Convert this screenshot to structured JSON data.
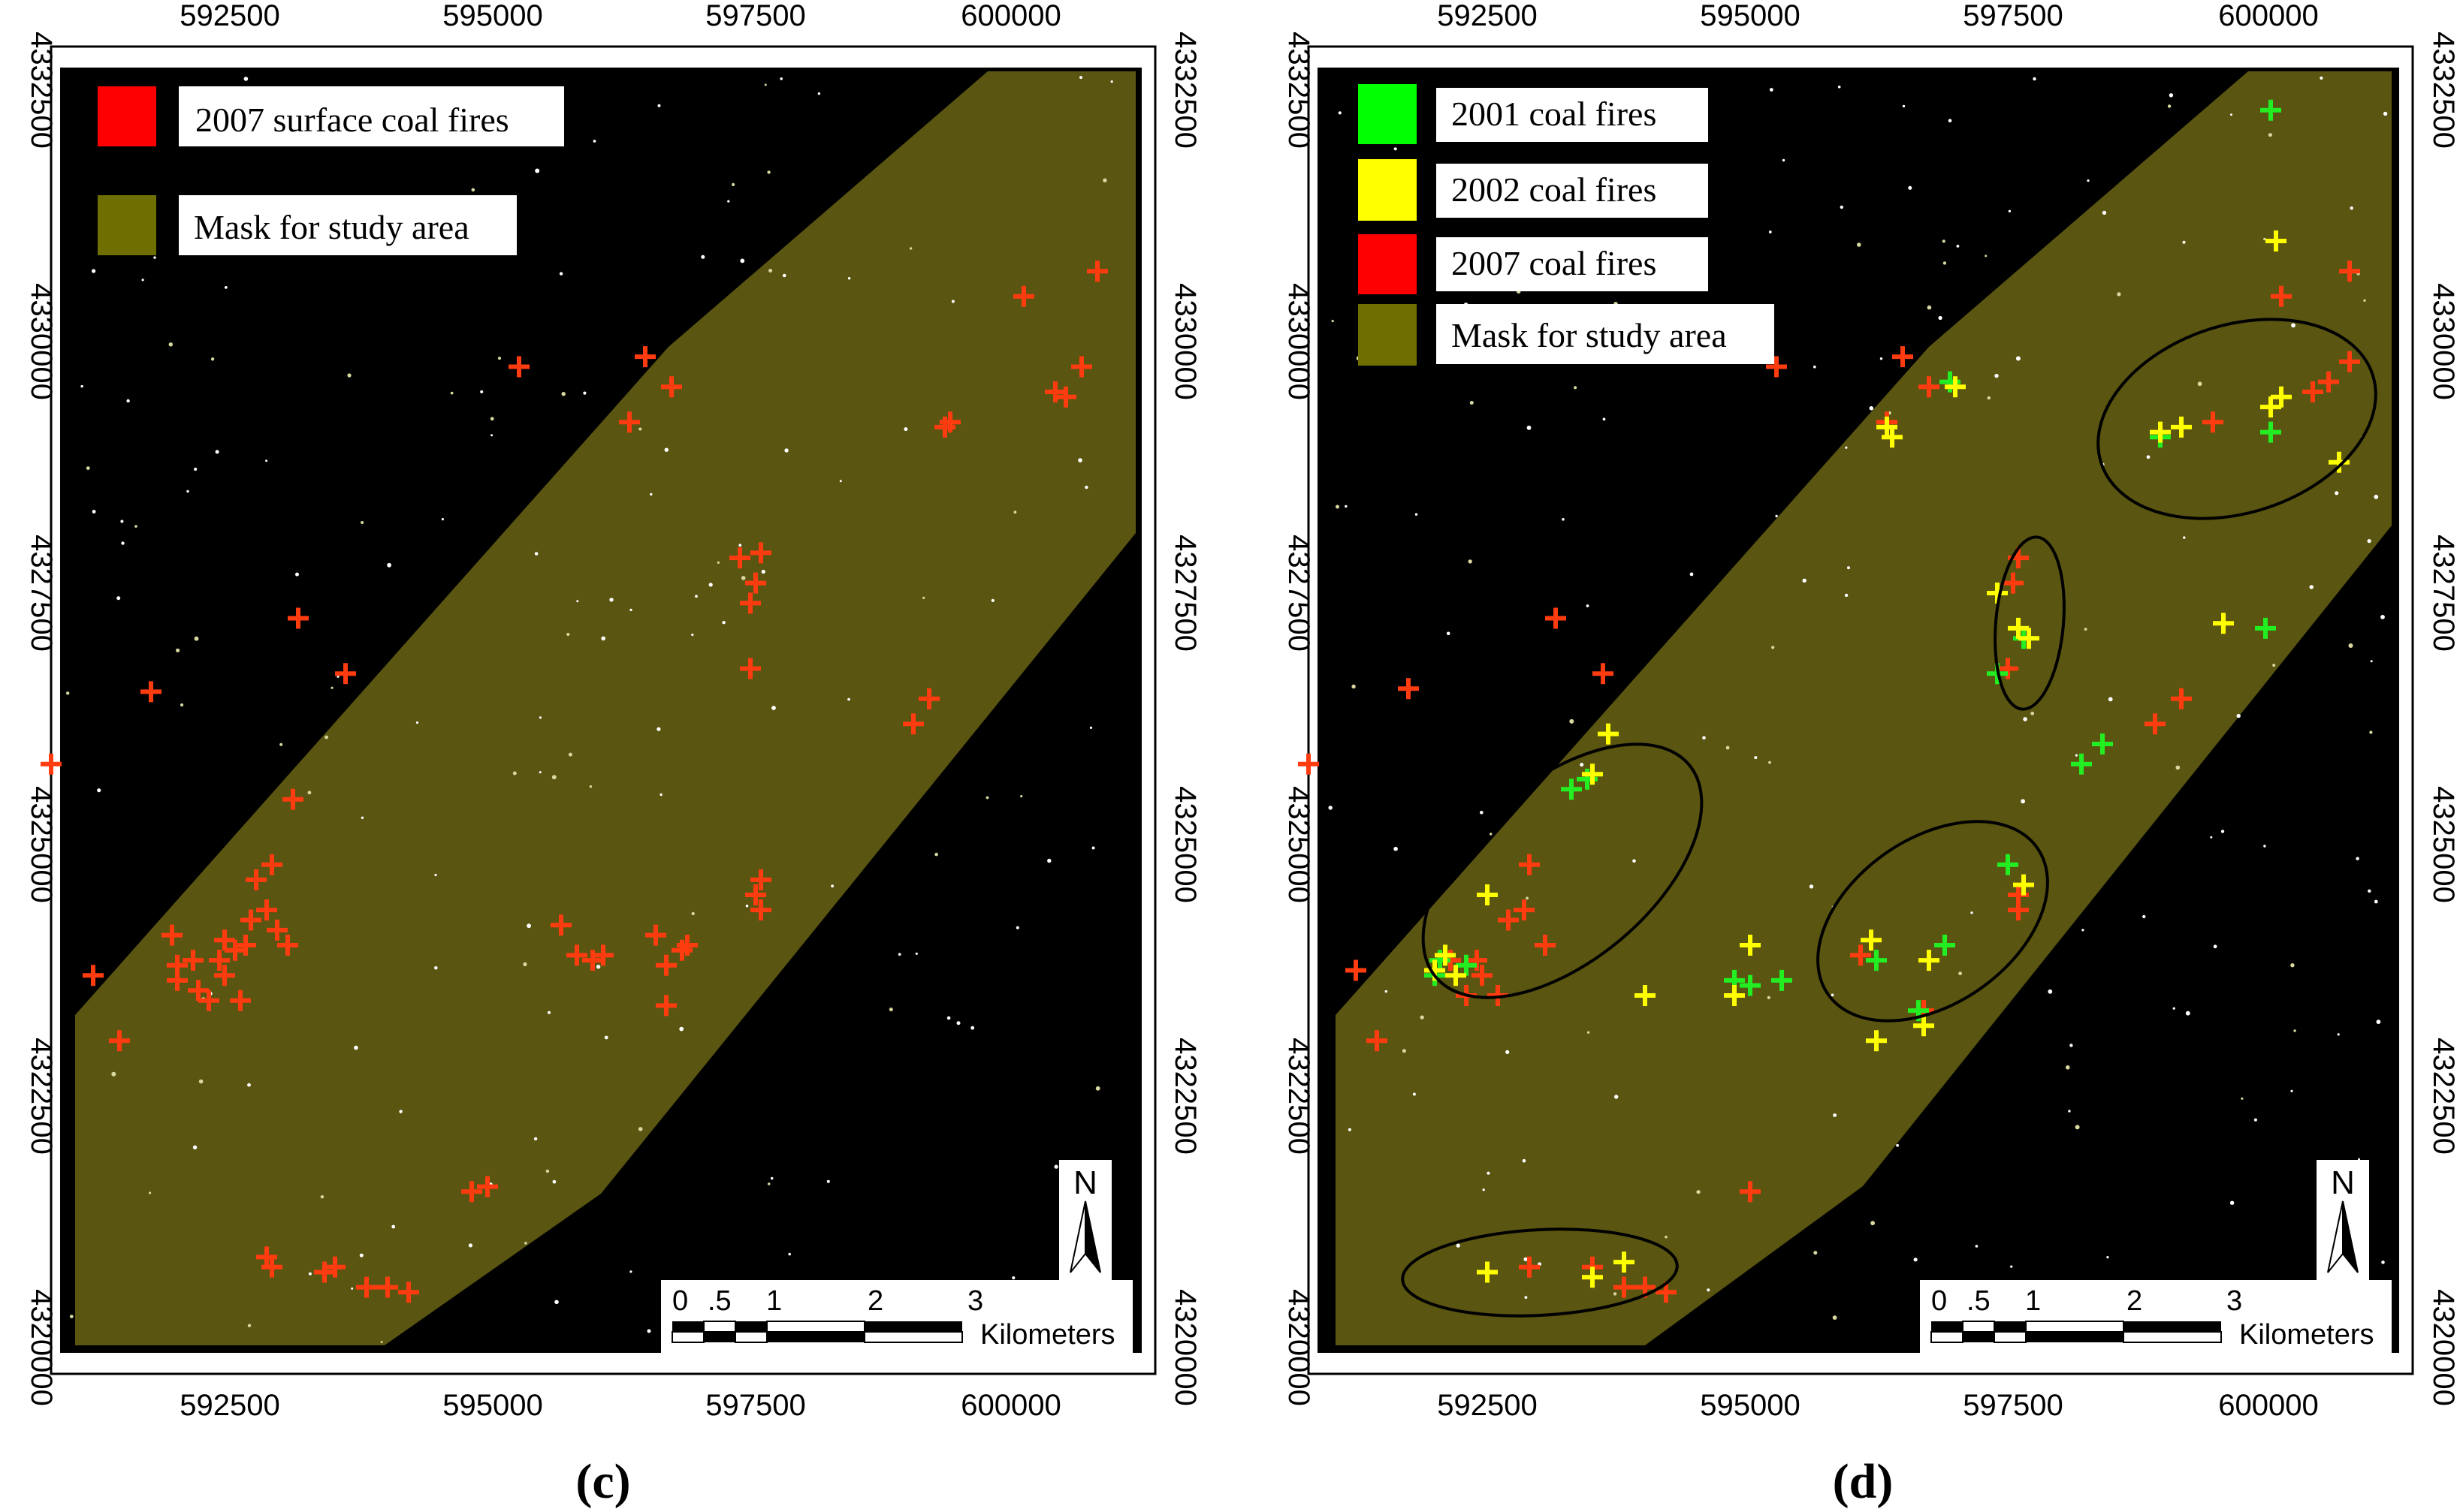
{
  "colors": {
    "background": "#000000",
    "mask": "#5a5511",
    "fire_2001": "#22ee22",
    "fire_2002": "#ffff00",
    "fire_2007": "#ff3b10",
    "legend_red": "#ff0000",
    "legend_green": "#00ff00",
    "legend_yellow": "#ffff00",
    "legend_mask": "#6e6f00"
  },
  "axes": {
    "x_ticks": [
      "592500",
      "595000",
      "597500",
      "600000"
    ],
    "y_ticks": [
      "4332500",
      "4330000",
      "4327500",
      "4325000",
      "4322500",
      "4320000"
    ]
  },
  "panels": [
    {
      "id": "c",
      "caption": "(c)",
      "legend": [
        {
          "label": "2007 surface coal fires",
          "color": "legend_red"
        },
        {
          "label": "Mask for study area",
          "color": "legend_mask"
        }
      ],
      "fires": {
        "2007": [
          [
            590800,
            4325800
          ],
          [
            591750,
            4326520
          ],
          [
            593150,
            4327250
          ],
          [
            593100,
            4325450
          ],
          [
            593600,
            4326700
          ],
          [
            592150,
            4323850
          ],
          [
            592000,
            4323650
          ],
          [
            592300,
            4323450
          ],
          [
            592450,
            4323700
          ],
          [
            592550,
            4323950
          ],
          [
            592600,
            4323450
          ],
          [
            592450,
            4324050
          ],
          [
            592700,
            4324250
          ],
          [
            592850,
            4324350
          ],
          [
            592950,
            4324150
          ],
          [
            592750,
            4324650
          ],
          [
            592900,
            4324800
          ],
          [
            593050,
            4324000
          ],
          [
            591450,
            4323050
          ],
          [
            591200,
            4323700
          ],
          [
            592400,
            4323850
          ],
          [
            592650,
            4324000
          ],
          [
            592000,
            4323800
          ],
          [
            592200,
            4323550
          ],
          [
            591950,
            4324100
          ],
          [
            592900,
            4320800
          ],
          [
            592850,
            4320900
          ],
          [
            593400,
            4320750
          ],
          [
            593500,
            4320800
          ],
          [
            593800,
            4320600
          ],
          [
            594000,
            4320600
          ],
          [
            594200,
            4320550
          ],
          [
            594800,
            4321550
          ],
          [
            594950,
            4321600
          ],
          [
            595250,
            4329750
          ],
          [
            596450,
            4329850
          ],
          [
            596700,
            4329550
          ],
          [
            596300,
            4329200
          ],
          [
            597350,
            4327850
          ],
          [
            597550,
            4327900
          ],
          [
            597500,
            4327600
          ],
          [
            597450,
            4327400
          ],
          [
            597450,
            4326750
          ],
          [
            597550,
            4324650
          ],
          [
            597500,
            4324500
          ],
          [
            597550,
            4324350
          ],
          [
            596550,
            4324100
          ],
          [
            596650,
            4323800
          ],
          [
            596800,
            4323950
          ],
          [
            596850,
            4324000
          ],
          [
            596650,
            4323400
          ],
          [
            595800,
            4323900
          ],
          [
            595950,
            4323850
          ],
          [
            596050,
            4323900
          ],
          [
            595650,
            4324200
          ],
          [
            599000,
            4326200
          ],
          [
            599150,
            4326450
          ],
          [
            599350,
            4329200
          ],
          [
            599300,
            4329150
          ],
          [
            600050,
            4330450
          ],
          [
            600350,
            4329500
          ],
          [
            600450,
            4329450
          ],
          [
            600600,
            4329750
          ],
          [
            600750,
            4330700
          ]
        ]
      }
    },
    {
      "id": "d",
      "caption": "(d)",
      "legend": [
        {
          "label": "2001 coal fires",
          "color": "legend_green"
        },
        {
          "label": "2002 coal fires",
          "color": "legend_yellow"
        },
        {
          "label": "2007 coal fires",
          "color": "legend_red"
        },
        {
          "label": "Mask for study area",
          "color": "legend_mask"
        }
      ],
      "fires": {
        "2001": [
          [
            592000,
            4323700
          ],
          [
            592050,
            4323850
          ],
          [
            592300,
            4323800
          ],
          [
            593300,
            4325550
          ],
          [
            593450,
            4325650
          ],
          [
            596900,
            4329600
          ],
          [
            597450,
            4324800
          ],
          [
            597600,
            4327050
          ],
          [
            597350,
            4326700
          ],
          [
            598150,
            4325800
          ],
          [
            598350,
            4326000
          ],
          [
            598900,
            4329050
          ],
          [
            599950,
            4329100
          ],
          [
            599950,
            4332300
          ],
          [
            599900,
            4327150
          ],
          [
            595300,
            4323650
          ],
          [
            596600,
            4323350
          ],
          [
            596850,
            4324000
          ],
          [
            594850,
            4323650
          ],
          [
            595000,
            4323600
          ],
          [
            596200,
            4323850
          ]
        ],
        "2002": [
          [
            592100,
            4323900
          ],
          [
            592000,
            4323750
          ],
          [
            592200,
            4323700
          ],
          [
            592500,
            4324500
          ],
          [
            593650,
            4326100
          ],
          [
            593500,
            4325700
          ],
          [
            596300,
            4329150
          ],
          [
            596350,
            4329050
          ],
          [
            596950,
            4329550
          ],
          [
            597350,
            4327500
          ],
          [
            597550,
            4327150
          ],
          [
            597650,
            4327050
          ],
          [
            597600,
            4324600
          ],
          [
            598900,
            4329100
          ],
          [
            599100,
            4329150
          ],
          [
            599950,
            4329350
          ],
          [
            600050,
            4329450
          ],
          [
            600000,
            4331000
          ],
          [
            600600,
            4328800
          ],
          [
            595000,
            4324000
          ],
          [
            594850,
            4323500
          ],
          [
            594000,
            4323500
          ],
          [
            596200,
            4323050
          ],
          [
            596700,
            4323850
          ],
          [
            596650,
            4323200
          ],
          [
            592500,
            4320750
          ],
          [
            593500,
            4320700
          ],
          [
            593800,
            4320850
          ],
          [
            596150,
            4324050
          ],
          [
            599500,
            4327200
          ]
        ],
        "2007": [
          [
            590800,
            4325800
          ],
          [
            591750,
            4326550
          ],
          [
            593150,
            4327250
          ],
          [
            593600,
            4326700
          ],
          [
            592150,
            4323850
          ],
          [
            592300,
            4323500
          ],
          [
            592450,
            4323700
          ],
          [
            592600,
            4323500
          ],
          [
            592700,
            4324250
          ],
          [
            592850,
            4324350
          ],
          [
            592900,
            4324800
          ],
          [
            593050,
            4324000
          ],
          [
            591450,
            4323050
          ],
          [
            591250,
            4323750
          ],
          [
            592400,
            4323850
          ],
          [
            592900,
            4320800
          ],
          [
            593500,
            4320800
          ],
          [
            593800,
            4320600
          ],
          [
            594000,
            4320600
          ],
          [
            594200,
            4320550
          ],
          [
            595000,
            4321550
          ],
          [
            595250,
            4329750
          ],
          [
            596450,
            4329850
          ],
          [
            596700,
            4329550
          ],
          [
            596300,
            4329200
          ],
          [
            597550,
            4327850
          ],
          [
            597500,
            4327600
          ],
          [
            597450,
            4326750
          ],
          [
            597550,
            4324500
          ],
          [
            597550,
            4324350
          ],
          [
            596850,
            4324000
          ],
          [
            596650,
            4323350
          ],
          [
            596050,
            4323900
          ],
          [
            598850,
            4326200
          ],
          [
            599100,
            4326450
          ],
          [
            599400,
            4329200
          ],
          [
            600050,
            4330450
          ],
          [
            600350,
            4329500
          ],
          [
            600500,
            4329600
          ],
          [
            600700,
            4329800
          ],
          [
            600700,
            4330700
          ]
        ]
      }
    }
  ],
  "scalebar": {
    "labels": [
      "0",
      ".5",
      "1",
      "2",
      "3"
    ],
    "unit": "Kilometers"
  },
  "north_arrow": {
    "label": "N"
  }
}
